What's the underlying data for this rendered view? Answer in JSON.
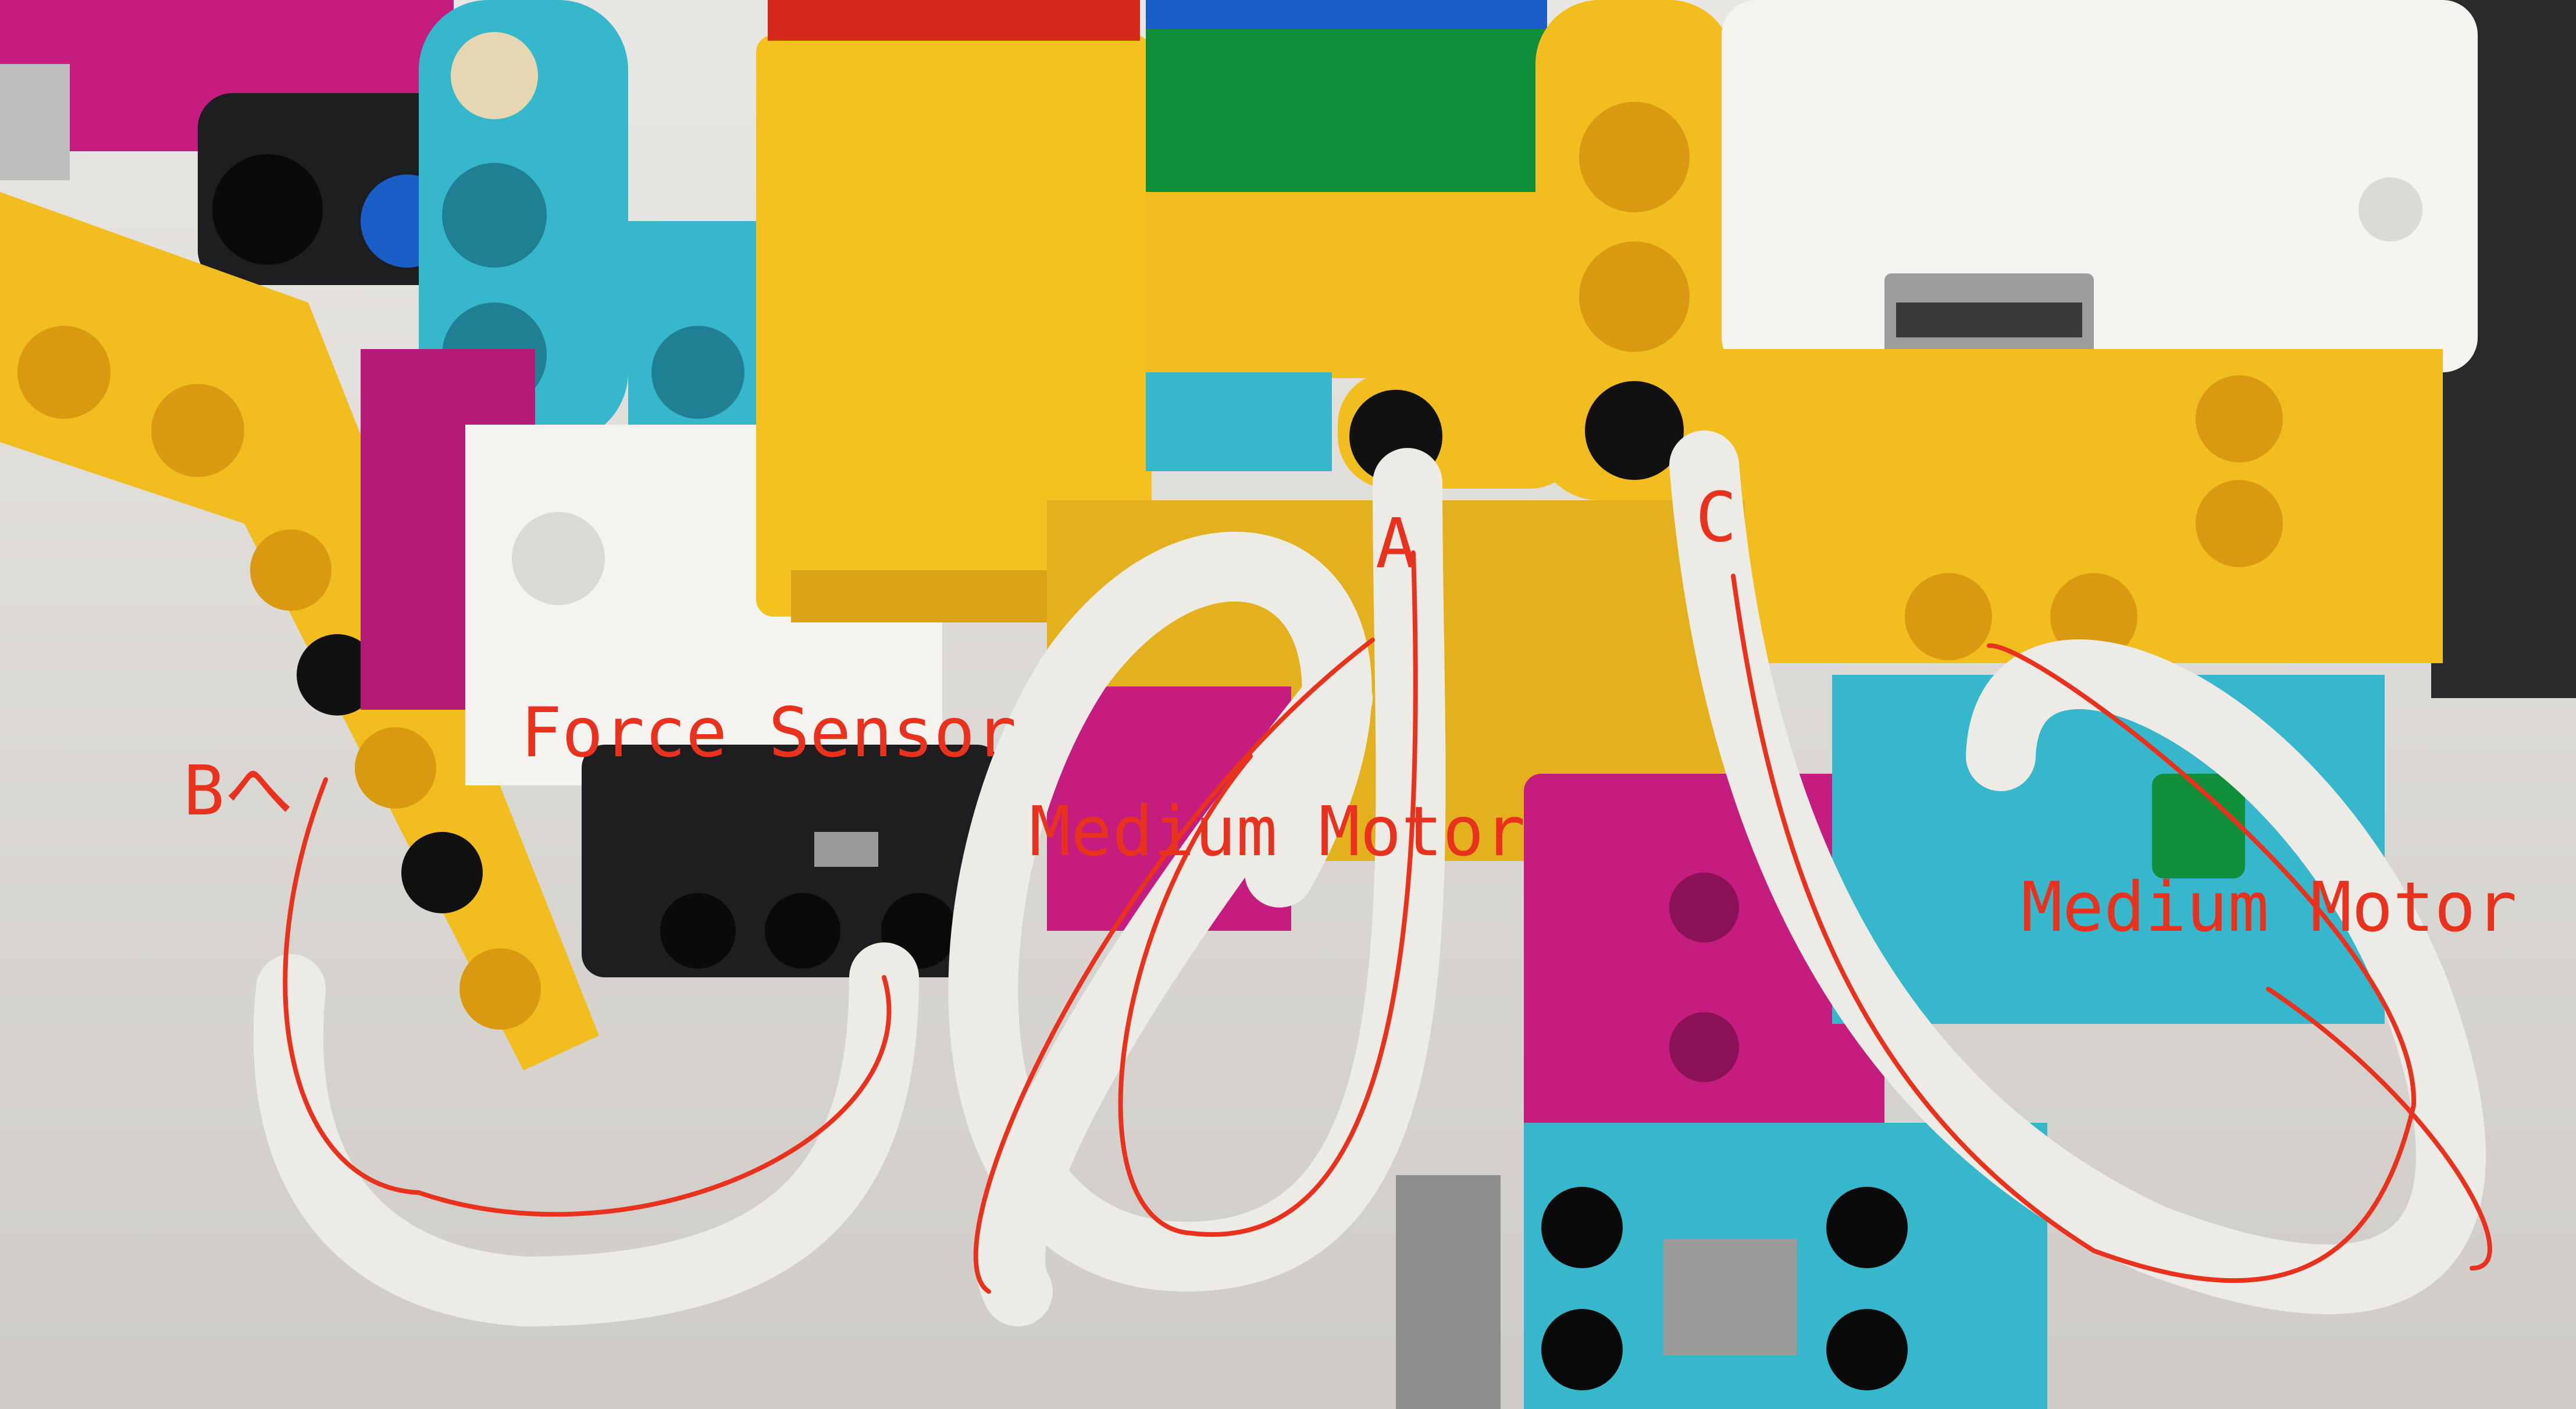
{
  "annotations": {
    "force_sensor": "Force Sensor",
    "port_b": "Bへ",
    "medium_motor_left": "Medium Motor",
    "medium_motor_right": "Medium Motor",
    "port_a": "A",
    "port_c": "C"
  },
  "colors": {
    "annotation_red": "#e8321e",
    "lego_yellow": "#f2bd1e",
    "lego_azure": "#36b7cc",
    "lego_magenta": "#c41c7f",
    "lego_green": "#0f8f3a",
    "lego_red": "#d6271b",
    "lego_blue": "#1a5fc8",
    "cable_white": "#ecebe6",
    "hub_white": "#f4f3ef",
    "sensor_black": "#1e1e20"
  }
}
